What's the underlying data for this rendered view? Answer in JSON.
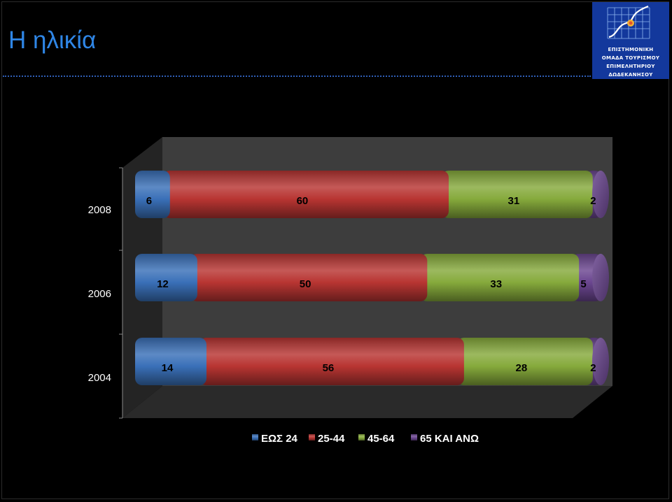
{
  "slide": {
    "title": "Η ηλικία",
    "logo_lines": [
      "ΕΠΙΣΤΗΜΟΝΙΚΗ",
      "ΟΜΑΔΑ ΤΟΥΡΙΣΜΟΥ",
      "ΕΠΙΜΕΛΗΤΗΡΙΟΥ",
      "ΔΩΔΕΚΑΝΗΣΟΥ"
    ]
  },
  "chart_data": {
    "type": "bar",
    "orientation": "horizontal",
    "stacked": "100%",
    "style": "3d-cylinder",
    "categories": [
      "2008",
      "2006",
      "2004"
    ],
    "series": [
      {
        "name": "ΕΩΣ 24",
        "values": [
          6,
          12,
          14
        ],
        "color": "#3a70b8"
      },
      {
        "name": "25-44",
        "values": [
          60,
          50,
          56
        ],
        "color": "#b83532"
      },
      {
        "name": "45-64",
        "values": [
          31,
          33,
          28
        ],
        "color": "#86aa3c"
      },
      {
        "name": "65 ΚΑΙ ΑΝΩ",
        "values": [
          2,
          5,
          2
        ],
        "color": "#6b4690"
      }
    ],
    "legend_position": "bottom"
  }
}
